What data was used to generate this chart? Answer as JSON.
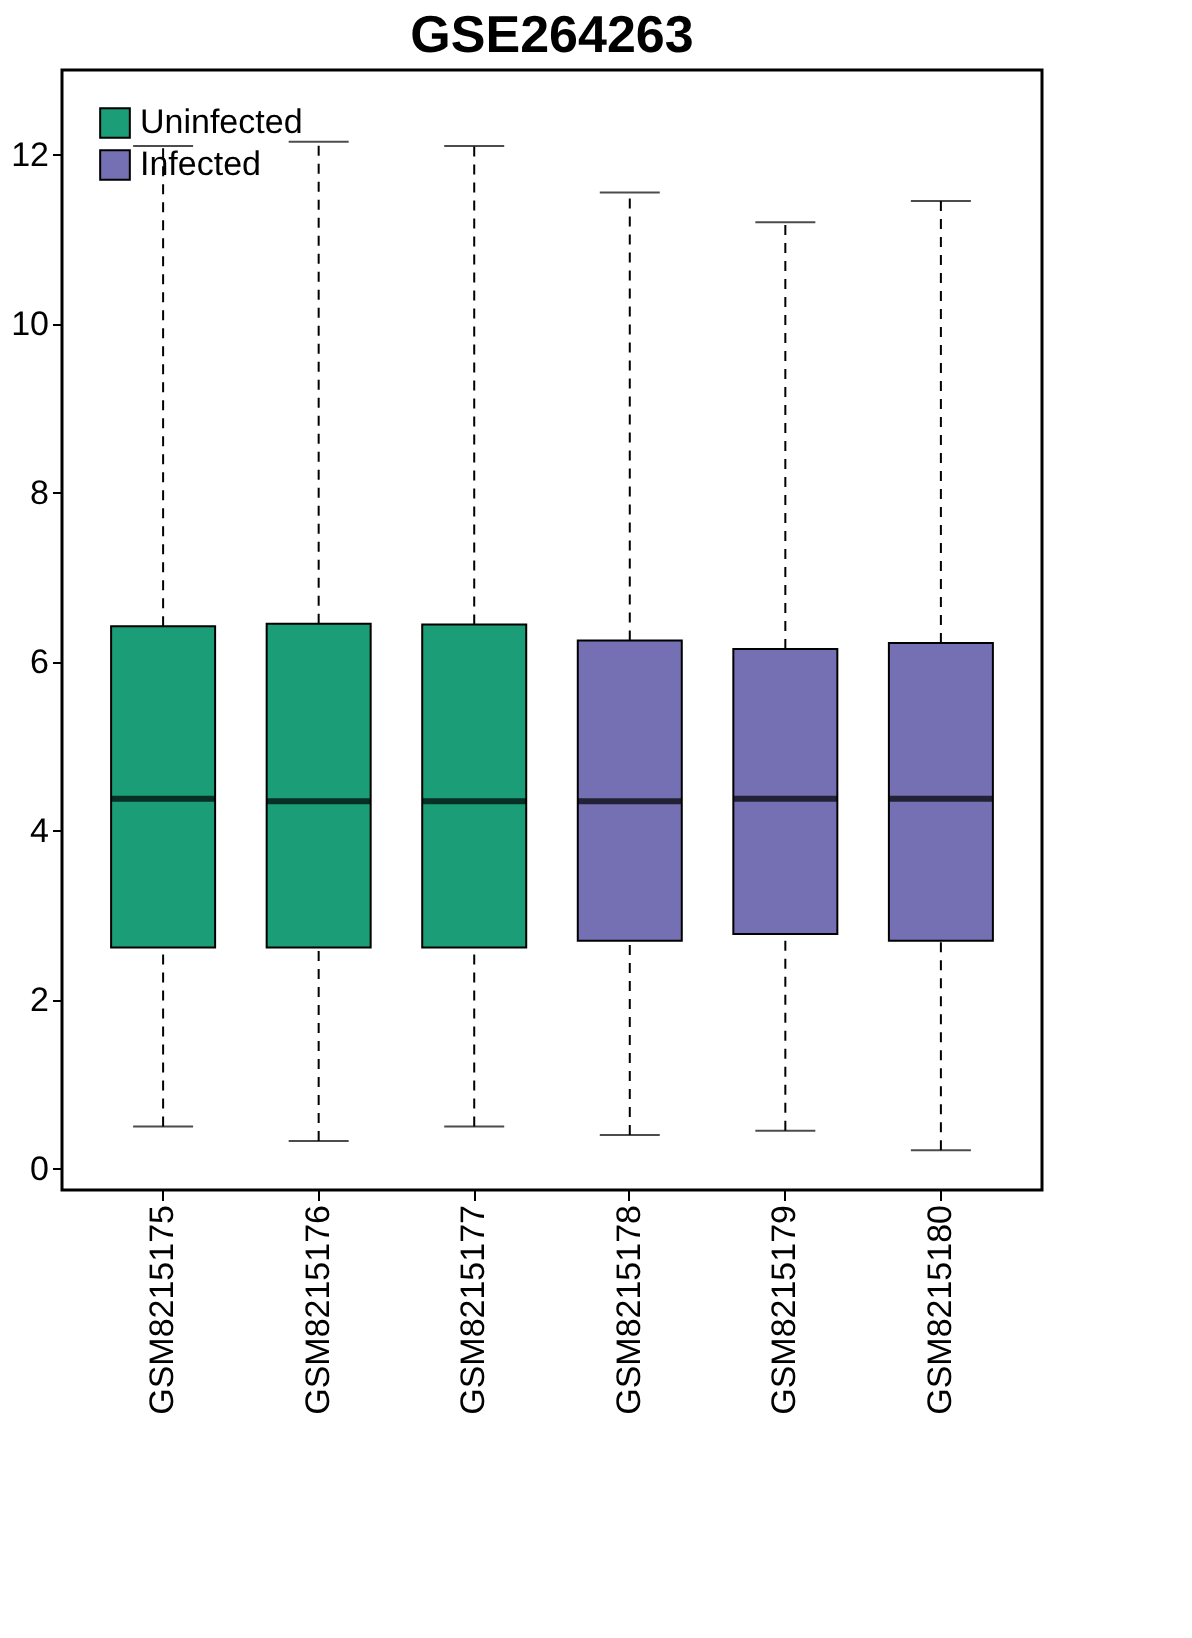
{
  "chart_data": {
    "type": "box",
    "title": "GSE264263",
    "categories": [
      "GSM8215175",
      "GSM8215176",
      "GSM8215177",
      "GSM8215178",
      "GSM8215179",
      "GSM8215180"
    ],
    "series": [
      {
        "name": "Uninfected",
        "color": "#1b9e77",
        "boxes": [
          {
            "low": 0.5,
            "q1": 2.62,
            "median": 4.38,
            "q3": 6.42,
            "high": 12.1
          },
          {
            "low": 0.33,
            "q1": 2.62,
            "median": 4.35,
            "q3": 6.45,
            "high": 12.15
          },
          {
            "low": 0.5,
            "q1": 2.62,
            "median": 4.35,
            "q3": 6.44,
            "high": 12.1
          },
          null,
          null,
          null
        ]
      },
      {
        "name": "Infected",
        "color": "#7570b3",
        "boxes": [
          null,
          null,
          null,
          {
            "low": 0.4,
            "q1": 2.7,
            "median": 4.35,
            "q3": 6.25,
            "high": 11.55
          },
          {
            "low": 0.45,
            "q1": 2.78,
            "median": 4.38,
            "q3": 6.15,
            "high": 11.2
          },
          {
            "low": 0.22,
            "q1": 2.7,
            "median": 4.38,
            "q3": 6.22,
            "high": 11.45
          }
        ]
      }
    ],
    "ylim": [
      -0.25,
      13.0
    ],
    "yticks": [
      0,
      2,
      4,
      6,
      8,
      10,
      12
    ],
    "grid": false,
    "legend": "top left",
    "line_style": "dashed"
  }
}
